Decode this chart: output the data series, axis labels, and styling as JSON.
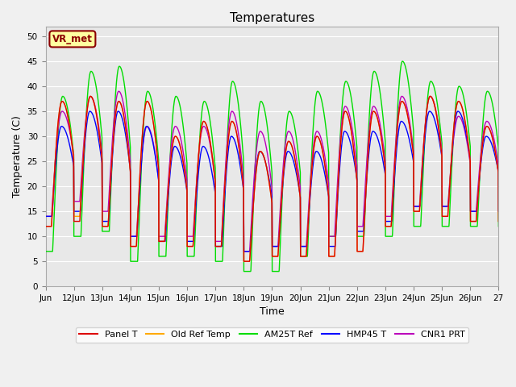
{
  "title": "Temperatures",
  "xlabel": "Time",
  "ylabel": "Temperature (C)",
  "ylim": [
    0,
    52
  ],
  "yticks": [
    0,
    5,
    10,
    15,
    20,
    25,
    30,
    35,
    40,
    45,
    50
  ],
  "annotation": "VR_met",
  "fig_bg_color": "#f0f0f0",
  "plot_bg_color": "#e8e8e8",
  "grid_color": "#ffffff",
  "series_colors": {
    "Panel T": "#dd0000",
    "Old Ref Temp": "#ffaa00",
    "AM25T Ref": "#00dd00",
    "HMP45 T": "#0000ff",
    "CNR1 PRT": "#bb00bb"
  },
  "x_start_day": 11,
  "x_end_day": 27,
  "x_tick_days": [
    11,
    12,
    13,
    14,
    15,
    16,
    17,
    18,
    19,
    20,
    21,
    22,
    23,
    24,
    25,
    26,
    27
  ],
  "x_tick_labels": [
    "Jun",
    "12Jun",
    "13Jun",
    "14Jun",
    "15Jun",
    "16Jun",
    "17Jun",
    "18Jun",
    "19Jun",
    "20Jun",
    "21Jun",
    "22Jun",
    "23Jun",
    "24Jun",
    "25Jun",
    "26Jun",
    "27"
  ],
  "panel_max": [
    37,
    38,
    37,
    37,
    30,
    33,
    33,
    27,
    29,
    30,
    35,
    35,
    37,
    38,
    37,
    32
  ],
  "panel_min": [
    12,
    13,
    12,
    8,
    9,
    8,
    8,
    5,
    6,
    6,
    6,
    7,
    12,
    15,
    14,
    13
  ],
  "old_max": [
    37,
    38,
    37,
    37,
    30,
    33,
    33,
    27,
    29,
    30,
    35,
    35,
    37,
    38,
    37,
    32
  ],
  "old_min": [
    12,
    14,
    12,
    8,
    9,
    8,
    8,
    5,
    6,
    6,
    6,
    7,
    12,
    15,
    14,
    13
  ],
  "am25t_max": [
    38,
    43,
    44,
    39,
    38,
    37,
    41,
    37,
    35,
    39,
    41,
    43,
    45,
    41,
    40,
    39
  ],
  "am25t_min": [
    7,
    10,
    11,
    5,
    6,
    6,
    5,
    3,
    3,
    6,
    10,
    10,
    10,
    12,
    12,
    12
  ],
  "hmp45_max": [
    32,
    35,
    35,
    32,
    28,
    28,
    30,
    27,
    27,
    27,
    31,
    31,
    33,
    35,
    35,
    30
  ],
  "hmp45_min": [
    14,
    15,
    13,
    10,
    9,
    9,
    8,
    7,
    8,
    8,
    8,
    11,
    13,
    16,
    16,
    15
  ],
  "cnr1_max": [
    35,
    38,
    39,
    32,
    32,
    32,
    35,
    31,
    31,
    31,
    36,
    36,
    38,
    38,
    34,
    33
  ],
  "cnr1_min": [
    14,
    17,
    15,
    10,
    10,
    10,
    9,
    7,
    8,
    8,
    10,
    12,
    14,
    16,
    16,
    15
  ]
}
